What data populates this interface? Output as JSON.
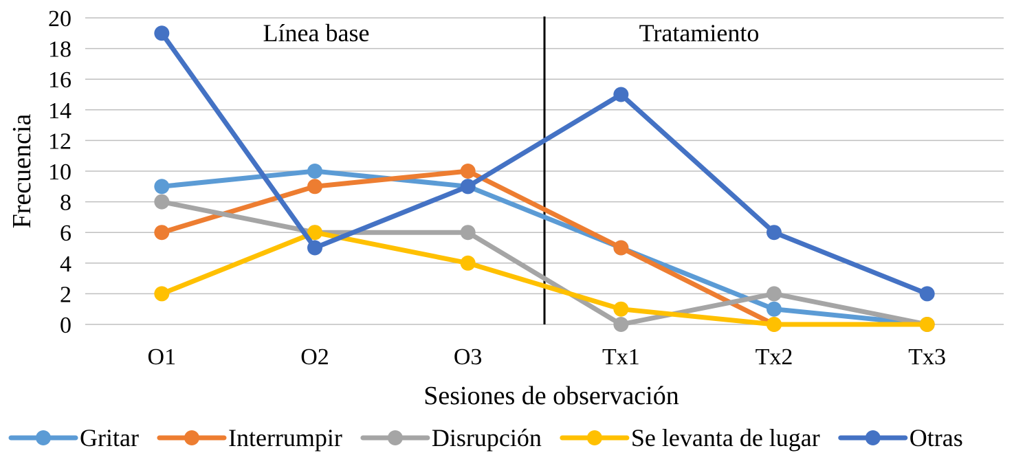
{
  "chart_data": {
    "type": "line",
    "title": "",
    "xlabel": "Sesiones de observación",
    "ylabel": "Frecuencia",
    "categories": [
      "O1",
      "O2",
      "O3",
      "Tx1",
      "Tx2",
      "Tx3"
    ],
    "ylim": [
      0,
      20
    ],
    "yticks": [
      0,
      2,
      4,
      6,
      8,
      10,
      12,
      14,
      16,
      18,
      20
    ],
    "grid": true,
    "legend_position": "bottom",
    "phase_divider_after": "O3",
    "phase_labels": [
      "Línea base",
      "Tratamiento"
    ],
    "series": [
      {
        "name": "Gritar",
        "color": "#5B9BD5",
        "values": [
          9,
          10,
          9,
          5,
          1,
          0
        ]
      },
      {
        "name": "Interrumpir",
        "color": "#ED7D31",
        "values": [
          6,
          9,
          10,
          5,
          0,
          0
        ]
      },
      {
        "name": "Disrupción",
        "color": "#A5A5A5",
        "values": [
          8,
          6,
          6,
          0,
          2,
          0
        ]
      },
      {
        "name": "Se levanta de lugar",
        "color": "#FFC000",
        "values": [
          2,
          6,
          4,
          1,
          0,
          0
        ]
      },
      {
        "name": "Otras",
        "color": "#4472C4",
        "values": [
          19,
          5,
          9,
          15,
          6,
          2
        ]
      }
    ]
  }
}
